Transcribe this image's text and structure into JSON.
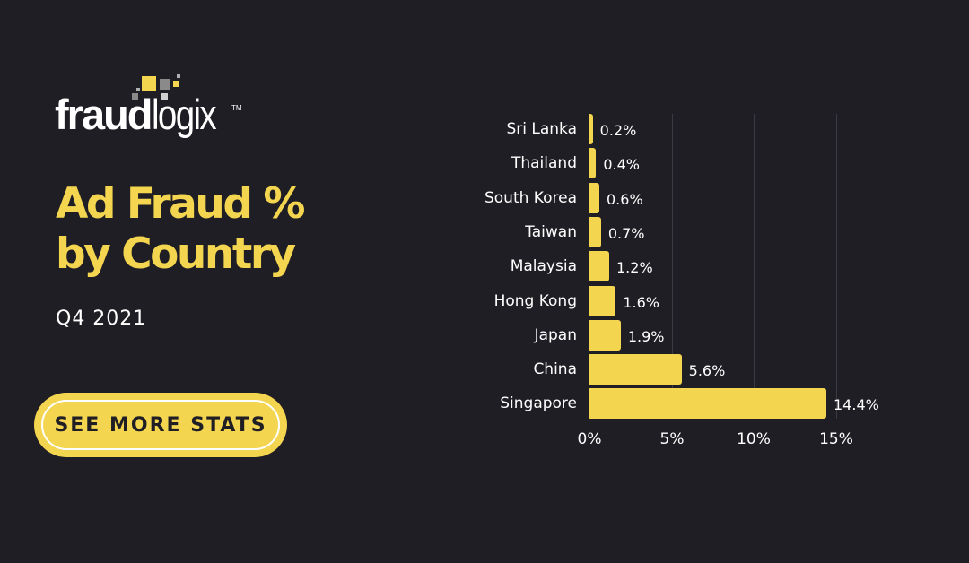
{
  "brand": {
    "logo_bold": "fraud",
    "logo_light": "logix",
    "trademark": "TM"
  },
  "header": {
    "title_line1": "Ad Fraud %",
    "title_line2": "by Country",
    "subtitle": "Q4 2021"
  },
  "cta": {
    "label": "SEE MORE STATS"
  },
  "colors": {
    "background": "#1f1e24",
    "accent": "#f3d550",
    "text": "#ffffff",
    "gridline": "#3a3a42"
  },
  "chart_data": {
    "type": "bar",
    "orientation": "horizontal",
    "title": "Ad Fraud % by Country",
    "subtitle": "Q4 2021",
    "xlabel": "",
    "ylabel": "",
    "categories": [
      "Sri Lanka",
      "Thailand",
      "South Korea",
      "Taiwan",
      "Malaysia",
      "Hong Kong",
      "Japan",
      "China",
      "Singapore"
    ],
    "values": [
      0.2,
      0.4,
      0.6,
      0.7,
      1.2,
      1.6,
      1.9,
      5.6,
      14.4
    ],
    "value_labels": [
      "0.2%",
      "0.4%",
      "0.6%",
      "0.7%",
      "1.2%",
      "1.6%",
      "1.9%",
      "5.6%",
      "14.4%"
    ],
    "xlim": [
      0,
      15
    ],
    "x_ticks": [
      "0%",
      "5%",
      "10%",
      "15%"
    ],
    "grid": true,
    "legend": null
  }
}
